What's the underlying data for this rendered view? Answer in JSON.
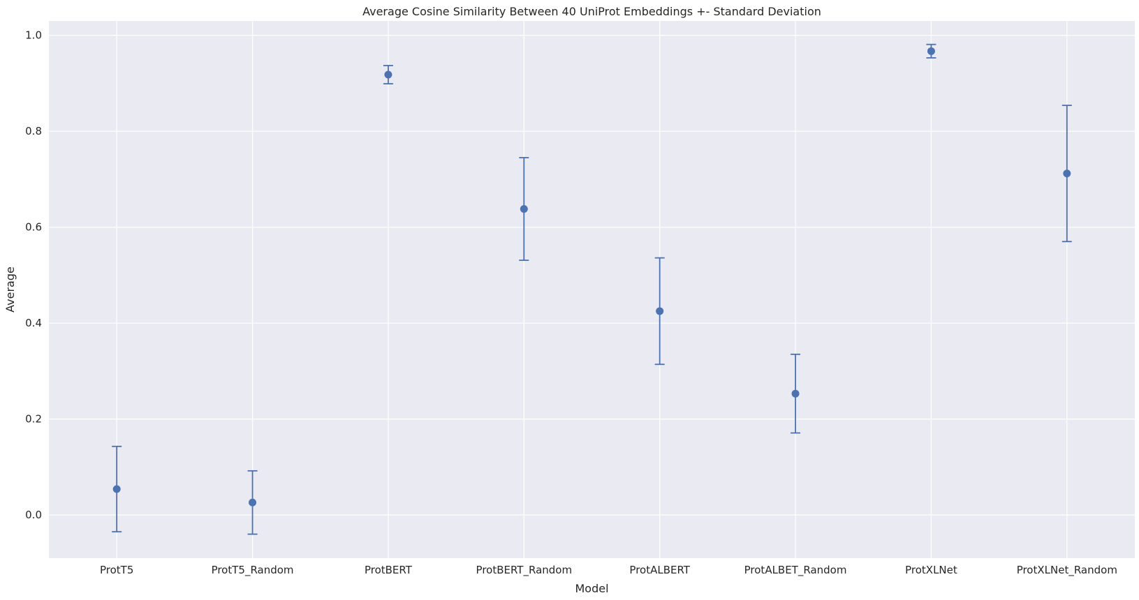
{
  "chart_data": {
    "type": "scatter",
    "title": "Average Cosine Similarity Between 40 UniProt Embeddings +- Standard Deviation",
    "xlabel": "Model",
    "ylabel": "Average",
    "categories": [
      "ProtT5",
      "ProtT5_Random",
      "ProtBERT",
      "ProtBERT_Random",
      "ProtALBERT",
      "ProtALBET_Random",
      "ProtXLNet",
      "ProtXLNet_Random"
    ],
    "values": [
      0.054,
      0.026,
      0.918,
      0.638,
      0.425,
      0.253,
      0.967,
      0.712
    ],
    "std": [
      0.089,
      0.066,
      0.019,
      0.107,
      0.111,
      0.082,
      0.014,
      0.142
    ],
    "ylim": [
      -0.09,
      1.03
    ],
    "yticks": [
      0.0,
      0.2,
      0.4,
      0.6,
      0.8,
      1.0
    ],
    "ytick_labels": [
      "0.0",
      "0.2",
      "0.4",
      "0.6",
      "0.8",
      "1.0"
    ],
    "grid": true,
    "colors": {
      "plot_background": "#eaeaf2",
      "grid": "#ffffff",
      "marker": "#4c72b0"
    }
  }
}
